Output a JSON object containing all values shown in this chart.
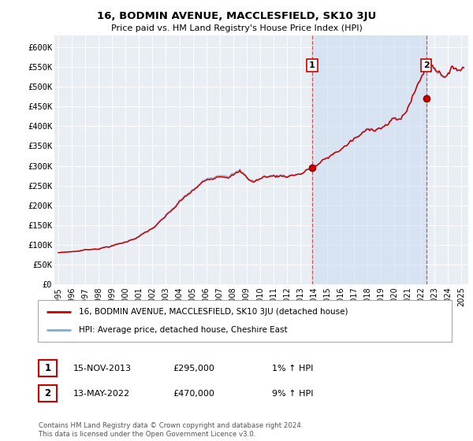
{
  "title": "16, BODMIN AVENUE, MACCLESFIELD, SK10 3JU",
  "subtitle": "Price paid vs. HM Land Registry's House Price Index (HPI)",
  "ylabel_ticks": [
    "£0",
    "£50K",
    "£100K",
    "£150K",
    "£200K",
    "£250K",
    "£300K",
    "£350K",
    "£400K",
    "£450K",
    "£500K",
    "£550K",
    "£600K"
  ],
  "ytick_values": [
    0,
    50000,
    100000,
    150000,
    200000,
    250000,
    300000,
    350000,
    400000,
    450000,
    500000,
    550000,
    600000
  ],
  "ylim": [
    0,
    630000
  ],
  "xlim_start": 1994.7,
  "xlim_end": 2025.5,
  "background_color": "#ffffff",
  "plot_bg_color": "#e8eef4",
  "grid_color": "#ffffff",
  "line_color_property": "#cc0000",
  "line_color_hpi": "#88aacc",
  "shade_color": "#ccddf0",
  "sale1_x": 2013.88,
  "sale1_y": 295000,
  "sale2_x": 2022.37,
  "sale2_y": 470000,
  "legend_property": "16, BODMIN AVENUE, MACCLESFIELD, SK10 3JU (detached house)",
  "legend_hpi": "HPI: Average price, detached house, Cheshire East",
  "annotation1_label": "1",
  "annotation1_date": "15-NOV-2013",
  "annotation1_price": "£295,000",
  "annotation1_hpi": "1% ↑ HPI",
  "annotation2_label": "2",
  "annotation2_date": "13-MAY-2022",
  "annotation2_price": "£470,000",
  "annotation2_hpi": "9% ↑ HPI",
  "footer": "Contains HM Land Registry data © Crown copyright and database right 2024.\nThis data is licensed under the Open Government Licence v3.0.",
  "xticks": [
    1995,
    1996,
    1997,
    1998,
    1999,
    2000,
    2001,
    2002,
    2003,
    2004,
    2005,
    2006,
    2007,
    2008,
    2009,
    2010,
    2011,
    2012,
    2013,
    2014,
    2015,
    2016,
    2017,
    2018,
    2019,
    2020,
    2021,
    2022,
    2023,
    2024,
    2025
  ]
}
